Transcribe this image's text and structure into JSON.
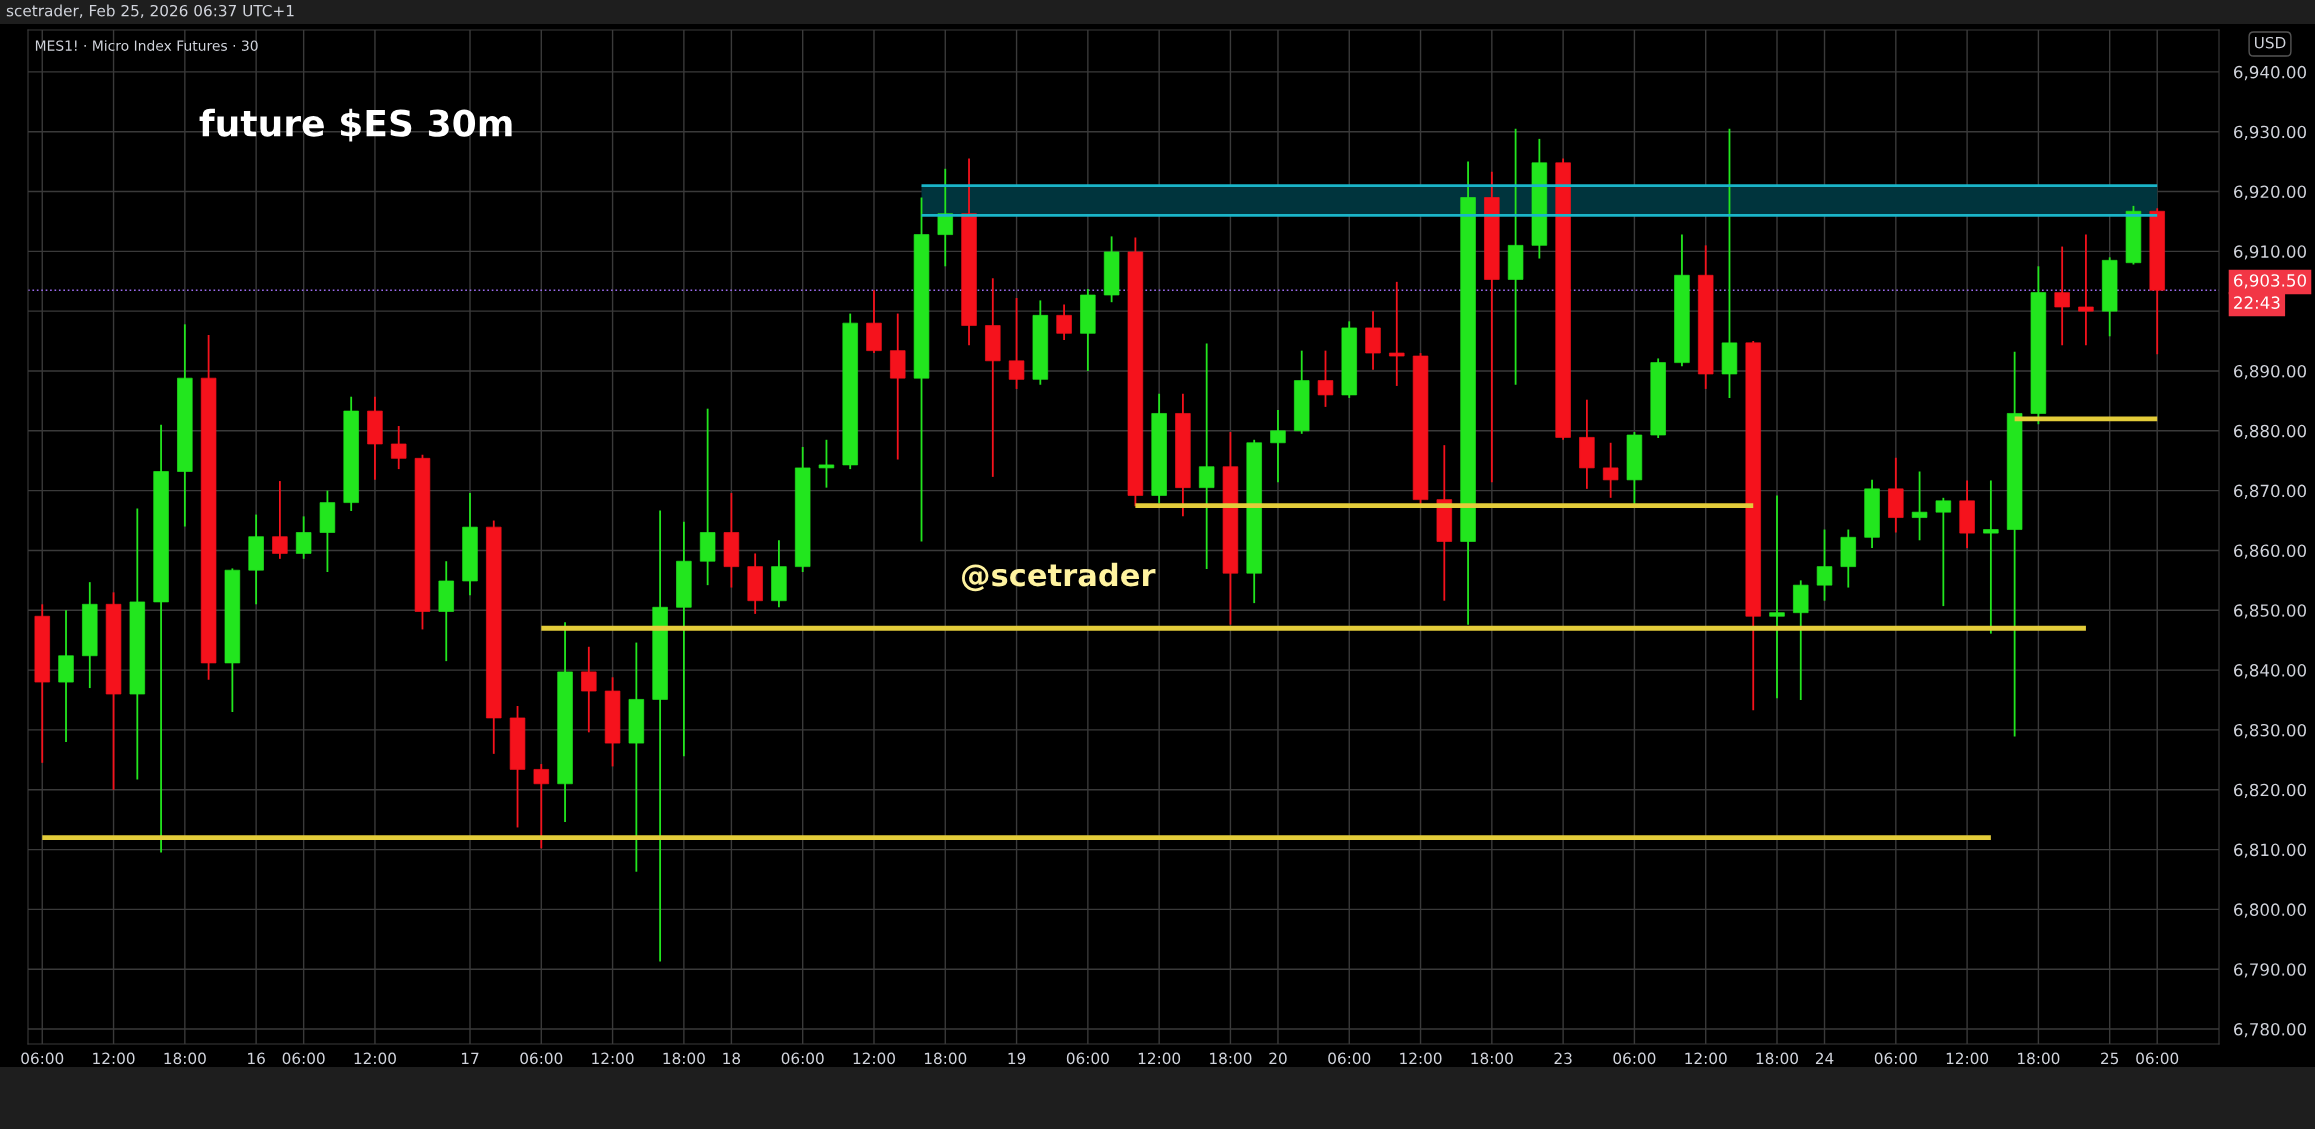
{
  "chart_data": {
    "type": "candlestick",
    "title": "future $ES 30m",
    "subtitle": "MES1! · Micro Index Futures · 30",
    "annotations": [
      "scetrader, Feb 25, 2026 06:37 UTC+1",
      "@scetrader",
      "USD",
      "22:43"
    ],
    "categories": [
      "06:00",
      null,
      null,
      "12:00",
      null,
      null,
      "18:00",
      null,
      null,
      "16",
      null,
      "06:00",
      null,
      null,
      "12:00",
      null,
      null,
      null,
      "17",
      null,
      null,
      "06:00",
      null,
      null,
      "12:00",
      null,
      null,
      "18:00",
      null,
      "18",
      null,
      null,
      "06:00",
      null,
      null,
      "12:00",
      null,
      null,
      "18:00",
      null,
      null,
      "19",
      null,
      null,
      "06:00",
      null,
      null,
      "12:00",
      null,
      null,
      "18:00",
      null,
      "20",
      null,
      null,
      "06:00",
      null,
      null,
      "12:00",
      null,
      null,
      "18:00",
      null,
      null,
      "23",
      null,
      null,
      "06:00",
      null,
      null,
      "12:00",
      null,
      null,
      "18:00",
      null,
      "24",
      null,
      null,
      "06:00",
      null,
      null,
      "12:00",
      null,
      null,
      "18:00",
      null,
      null,
      "25",
      null,
      "06:00"
    ],
    "ohlc": [
      [
        6849,
        6851,
        6824.5,
        6838
      ],
      [
        6838,
        6850,
        6828,
        6842.4
      ],
      [
        6842.4,
        6854.7,
        6837,
        6851
      ],
      [
        6851,
        6853,
        6820,
        6836
      ],
      [
        6836,
        6867,
        6821.7,
        6851.4
      ],
      [
        6851.4,
        6881,
        6809.5,
        6873.2
      ],
      [
        6873.2,
        6897.8,
        6864,
        6888.8
      ],
      [
        6888.8,
        6896,
        6838.4,
        6841.2
      ],
      [
        6841.2,
        6857,
        6833,
        6856.7
      ],
      [
        6856.7,
        6866,
        6851,
        6862.3
      ],
      [
        6862.3,
        6871.6,
        6858.6,
        6859.5
      ],
      [
        6859.5,
        6865.7,
        6858.6,
        6863
      ],
      [
        6863,
        6870,
        6856.4,
        6868
      ],
      [
        6868,
        6885.7,
        6866.6,
        6883.3
      ],
      [
        6883.3,
        6885.7,
        6871.8,
        6877.8
      ],
      [
        6877.8,
        6880.8,
        6873.6,
        6875.4
      ],
      [
        6875.4,
        6876,
        6846.8,
        6849.8
      ],
      [
        6849.8,
        6858.2,
        6841.5,
        6854.9
      ],
      [
        6854.9,
        6869.6,
        6852.5,
        6863.9
      ],
      [
        6863.9,
        6865,
        6826,
        6832
      ],
      [
        6832,
        6834,
        6813.7,
        6823.4
      ],
      [
        6823.4,
        6824.3,
        6810.2,
        6821
      ],
      [
        6821,
        6848,
        6814.6,
        6839.7
      ],
      [
        6839.7,
        6843.9,
        6829.6,
        6836.5
      ],
      [
        6836.5,
        6838.8,
        6823.9,
        6827.8
      ],
      [
        6827.8,
        6844.6,
        6806.3,
        6835.1
      ],
      [
        6835.1,
        6866.7,
        6791.3,
        6850.5
      ],
      [
        6850.5,
        6864.8,
        6825.6,
        6858.2
      ],
      [
        6858.2,
        6883.7,
        6854.2,
        6863
      ],
      [
        6863,
        6869.6,
        6853.8,
        6857.3
      ],
      [
        6857.3,
        6859.5,
        6849.4,
        6851.6
      ],
      [
        6851.6,
        6861.7,
        6850.5,
        6857.3
      ],
      [
        6857.3,
        6877.3,
        6856.4,
        6873.8
      ],
      [
        6873.8,
        6878.5,
        6870.5,
        6874.3
      ],
      [
        6874.3,
        6899.6,
        6873.6,
        6898
      ],
      [
        6898,
        6903.5,
        6893,
        6893.4
      ],
      [
        6893.4,
        6899.6,
        6875.2,
        6888.8
      ],
      [
        6888.8,
        6919,
        6861.5,
        6912.8
      ],
      [
        6912.8,
        6923.8,
        6907.5,
        6916.3
      ],
      [
        6916.3,
        6925.5,
        6894.3,
        6897.6
      ],
      [
        6897.6,
        6905.5,
        6872.3,
        6891.7
      ],
      [
        6891.7,
        6902.2,
        6887,
        6888.6
      ],
      [
        6888.6,
        6901.8,
        6887.7,
        6899.3
      ],
      [
        6899.3,
        6901.1,
        6895.2,
        6896.3
      ],
      [
        6896.3,
        6903.7,
        6890,
        6902.7
      ],
      [
        6902.7,
        6912.5,
        6901.5,
        6909.9
      ],
      [
        6909.9,
        6912.3,
        6867.4,
        6869.2
      ],
      [
        6869.2,
        6886.2,
        6867.9,
        6882.9
      ],
      [
        6882.9,
        6886.2,
        6865.7,
        6870.5
      ],
      [
        6870.5,
        6894.6,
        6856.9,
        6874
      ],
      [
        6874,
        6879.8,
        6847.6,
        6856.2
      ],
      [
        6856.2,
        6878.5,
        6851.2,
        6878
      ],
      [
        6878,
        6883.5,
        6871.4,
        6880
      ],
      [
        6880,
        6893.4,
        6879.5,
        6888.4
      ],
      [
        6888.4,
        6893.4,
        6884,
        6886
      ],
      [
        6886,
        6898.3,
        6885.5,
        6897.2
      ],
      [
        6897.2,
        6900,
        6890.2,
        6893
      ],
      [
        6893,
        6904.9,
        6887.5,
        6892.5
      ],
      [
        6892.5,
        6893,
        6867.4,
        6868.5
      ],
      [
        6868.5,
        6877.6,
        6851.6,
        6861.5
      ],
      [
        6861.5,
        6925,
        6847.6,
        6919
      ],
      [
        6919,
        6923.3,
        6871.4,
        6905.3
      ],
      [
        6905.3,
        6930.5,
        6887.7,
        6911
      ],
      [
        6911,
        6928.8,
        6908.8,
        6924.8
      ],
      [
        6924.8,
        6925.5,
        6878.5,
        6878.9
      ],
      [
        6878.9,
        6885.2,
        6870.3,
        6873.8
      ],
      [
        6873.8,
        6878,
        6868.8,
        6871.8
      ],
      [
        6871.8,
        6879.8,
        6867.6,
        6879.3
      ],
      [
        6879.3,
        6892.1,
        6878.8,
        6891.4
      ],
      [
        6891.4,
        6912.8,
        6890.8,
        6906
      ],
      [
        6906,
        6911,
        6887,
        6889.5
      ],
      [
        6889.5,
        6930.5,
        6885.5,
        6894.7
      ],
      [
        6894.7,
        6895,
        6833.3,
        6849
      ],
      [
        6849,
        6869.2,
        6835.3,
        6849.6
      ],
      [
        6849.6,
        6855,
        6835,
        6854.2
      ],
      [
        6854.2,
        6863.5,
        6851.6,
        6857.3
      ],
      [
        6857.3,
        6863.5,
        6853.8,
        6862.2
      ],
      [
        6862.2,
        6871.8,
        6860.4,
        6870.3
      ],
      [
        6870.3,
        6875.5,
        6863,
        6865.5
      ],
      [
        6865.5,
        6873.2,
        6861.7,
        6866.4
      ],
      [
        6866.4,
        6868.8,
        6850.7,
        6868.3
      ],
      [
        6868.3,
        6871.7,
        6860.4,
        6862.9
      ],
      [
        6862.9,
        6871.7,
        6846.1,
        6863.5
      ],
      [
        6863.5,
        6893.2,
        6828.9,
        6882.9
      ],
      [
        6882.9,
        6907.5,
        6881.1,
        6903.1
      ],
      [
        6903.1,
        6910.8,
        6894.3,
        6900.7
      ],
      [
        6900.7,
        6912.8,
        6894.3,
        6900
      ],
      [
        6900,
        6909,
        6895.8,
        6908.5
      ],
      [
        6908.1,
        6917.6,
        6907.8,
        6916.7
      ],
      [
        6916.7,
        6917.2,
        6892.8,
        6903.5
      ]
    ],
    "colors": [
      "#f5121c",
      "#22e61e",
      "#22e61e",
      "#f5121c",
      "#22e61e",
      "#22e61e",
      "#22e61e",
      "#f5121c",
      "#22e61e",
      "#22e61e",
      "#f5121c",
      "#22e61e",
      "#22e61e",
      "#22e61e",
      "#f5121c",
      "#f5121c",
      "#f5121c",
      "#22e61e",
      "#22e61e",
      "#f5121c",
      "#f5121c",
      "#f5121c",
      "#22e61e",
      "#f5121c",
      "#f5121c",
      "#22e61e",
      "#22e61e",
      "#22e61e",
      "#22e61e",
      "#f5121c",
      "#f5121c",
      "#22e61e",
      "#22e61e",
      "#22e61e",
      "#22e61e",
      "#f5121c",
      "#f5121c",
      "#22e61e",
      "#22e61e",
      "#f5121c",
      "#f5121c",
      "#f5121c",
      "#22e61e",
      "#f5121c",
      "#22e61e",
      "#22e61e",
      "#f5121c",
      "#22e61e",
      "#f5121c",
      "#22e61e",
      "#f5121c",
      "#22e61e",
      "#22e61e",
      "#22e61e",
      "#f5121c",
      "#22e61e",
      "#f5121c",
      "#f5121c",
      "#f5121c",
      "#f5121c",
      "#22e61e",
      "#f5121c",
      "#22e61e",
      "#22e61e",
      "#f5121c",
      "#f5121c",
      "#f5121c",
      "#22e61e",
      "#22e61e",
      "#22e61e",
      "#f5121c",
      "#22e61e",
      "#f5121c",
      "#22e61e",
      "#22e61e",
      "#22e61e",
      "#22e61e",
      "#22e61e",
      "#f5121c",
      "#22e61e",
      "#22e61e",
      "#f5121c",
      "#22e61e",
      "#22e61e",
      "#22e61e",
      "#f5121c",
      "#f5121c",
      "#22e61e",
      "#22e61e",
      "#f5121c"
    ],
    "series": [
      {
        "type": "line",
        "color": "#e3cc3a",
        "values": [
          null,
          null,
          null,
          null,
          null,
          null,
          null,
          null,
          null,
          null,
          null,
          null,
          null,
          null,
          null,
          null,
          null,
          null,
          null,
          null,
          null,
          6847,
          6847,
          6847,
          6847,
          6847,
          6847,
          6847,
          6847,
          6847,
          6847,
          6847,
          6847,
          6847,
          6847,
          6847,
          6847,
          6847,
          6847,
          6847,
          6847,
          6847,
          6847,
          6847,
          6847,
          6847,
          6847,
          6847,
          6847,
          6847,
          6847,
          6847,
          6847,
          6847,
          6847,
          6847,
          6847,
          6847,
          6847,
          6847,
          6847,
          6847,
          6847,
          6847,
          6847,
          6847,
          6847,
          6847,
          6847,
          6847,
          6847,
          6847,
          6847,
          6847,
          6847,
          6847,
          6847,
          6847,
          6847,
          6847,
          6847,
          6847,
          6847,
          6847,
          6847,
          6847,
          6847,
          null,
          null,
          null
        ]
      },
      {
        "type": "line",
        "color": "#e3cc3a",
        "values": [
          6812,
          6812,
          6812,
          6812,
          6812,
          6812,
          6812,
          6812,
          6812,
          6812,
          6812,
          6812,
          6812,
          6812,
          6812,
          6812,
          6812,
          6812,
          6812,
          6812,
          6812,
          6812,
          6812,
          6812,
          6812,
          6812,
          6812,
          6812,
          6812,
          6812,
          6812,
          6812,
          6812,
          6812,
          6812,
          6812,
          6812,
          6812,
          6812,
          6812,
          6812,
          6812,
          6812,
          6812,
          6812,
          6812,
          6812,
          6812,
          6812,
          6812,
          6812,
          6812,
          6812,
          6812,
          6812,
          6812,
          6812,
          6812,
          6812,
          6812,
          6812,
          6812,
          6812,
          6812,
          6812,
          6812,
          6812,
          6812,
          6812,
          6812,
          6812,
          6812,
          6812,
          6812,
          6812,
          6812,
          6812,
          6812,
          6812,
          6812,
          6812,
          6812,
          6812,
          null,
          null,
          null,
          null,
          null,
          null,
          null
        ]
      },
      {
        "type": "line",
        "color": "#e3cc3a",
        "values": [
          null,
          null,
          null,
          null,
          null,
          null,
          null,
          null,
          null,
          null,
          null,
          null,
          null,
          null,
          null,
          null,
          null,
          null,
          null,
          null,
          null,
          null,
          null,
          null,
          null,
          null,
          null,
          null,
          null,
          null,
          null,
          null,
          null,
          null,
          null,
          null,
          null,
          null,
          null,
          null,
          null,
          null,
          null,
          null,
          null,
          null,
          6867.5,
          6867.5,
          6867.5,
          6867.5,
          6867.5,
          6867.5,
          6867.5,
          6867.5,
          6867.5,
          6867.5,
          6867.5,
          6867.5,
          6867.5,
          6867.5,
          6867.5,
          6867.5,
          6867.5,
          6867.5,
          6867.5,
          6867.5,
          6867.5,
          6867.5,
          6867.5,
          6867.5,
          6867.5,
          6867.5,
          6867.5,
          null,
          null,
          null,
          null,
          null,
          null,
          null,
          null,
          null,
          null,
          null,
          null,
          null,
          null,
          null,
          null,
          null
        ]
      },
      {
        "type": "line",
        "color": "#e3cc3a",
        "values": [
          null,
          null,
          null,
          null,
          null,
          null,
          null,
          null,
          null,
          null,
          null,
          null,
          null,
          null,
          null,
          null,
          null,
          null,
          null,
          null,
          null,
          null,
          null,
          null,
          null,
          null,
          null,
          null,
          null,
          null,
          null,
          null,
          null,
          null,
          null,
          null,
          null,
          null,
          null,
          null,
          null,
          null,
          null,
          null,
          null,
          null,
          null,
          null,
          null,
          null,
          null,
          null,
          null,
          null,
          null,
          null,
          null,
          null,
          null,
          null,
          null,
          null,
          null,
          null,
          null,
          null,
          null,
          null,
          null,
          null,
          null,
          null,
          null,
          null,
          null,
          null,
          null,
          null,
          null,
          null,
          null,
          null,
          null,
          6882,
          6882,
          6882,
          6882,
          6882,
          6882,
          6882
        ]
      },
      {
        "type": "line",
        "color": "#1ab5c9",
        "values": [
          null,
          null,
          null,
          null,
          null,
          null,
          null,
          null,
          null,
          null,
          null,
          null,
          null,
          null,
          null,
          null,
          null,
          null,
          null,
          null,
          null,
          null,
          null,
          null,
          null,
          null,
          null,
          null,
          null,
          null,
          null,
          null,
          null,
          null,
          null,
          null,
          null,
          6916,
          6916,
          6916,
          6916,
          6916,
          6916,
          6916,
          6916,
          6916,
          6916,
          6916,
          6916,
          6916,
          6916,
          6916,
          6916,
          6916,
          6916,
          6916,
          6916,
          6916,
          6916,
          6916,
          6916,
          6916,
          6916,
          6916,
          6916,
          6916,
          6916,
          6916,
          6916,
          6916,
          6916,
          6916,
          6916,
          6916,
          6916,
          6916,
          6916,
          6916,
          6916,
          6916,
          6916,
          6916,
          6916,
          6916,
          6916,
          6916,
          6916,
          6916,
          6916,
          6916
        ]
      },
      {
        "type": "line",
        "color": "#1ab5c9",
        "values": [
          null,
          null,
          null,
          null,
          null,
          null,
          null,
          null,
          null,
          null,
          null,
          null,
          null,
          null,
          null,
          null,
          null,
          null,
          null,
          null,
          null,
          null,
          null,
          null,
          null,
          null,
          null,
          null,
          null,
          null,
          null,
          null,
          null,
          null,
          null,
          null,
          null,
          6921,
          6921,
          6921,
          6921,
          6921,
          6921,
          6921,
          6921,
          6921,
          6921,
          6921,
          6921,
          6921,
          6921,
          6921,
          6921,
          6921,
          6921,
          6921,
          6921,
          6921,
          6921,
          6921,
          6921,
          6921,
          6921,
          6921,
          6921,
          6921,
          6921,
          6921,
          6921,
          6921,
          6921,
          6921,
          6921,
          6921,
          6921,
          6921,
          6921,
          6921,
          6921,
          6921,
          6921,
          6921,
          6921,
          6921,
          6921,
          6921,
          6921,
          6921,
          6921,
          6921
        ]
      }
    ],
    "ref_lines": [
      {
        "axis": "y",
        "value": 6903.5,
        "label": "6,903.50",
        "color": "#9c6cf0",
        "line_style": "dotted"
      }
    ],
    "ylim": [
      6777.5,
      6947
    ],
    "yticks": [
      {
        "value": 6780,
        "label": "6,780.00"
      },
      {
        "value": 6790,
        "label": "6,790.00"
      },
      {
        "value": 6800,
        "label": "6,800.00"
      },
      {
        "value": 6810,
        "label": "6,810.00"
      },
      {
        "value": 6820,
        "label": "6,820.00"
      },
      {
        "value": 6830,
        "label": "6,830.00"
      },
      {
        "value": 6840,
        "label": "6,840.00"
      },
      {
        "value": 6850,
        "label": "6,850.00"
      },
      {
        "value": 6860,
        "label": "6,860.00"
      },
      {
        "value": 6870,
        "label": "6,870.00"
      },
      {
        "value": 6880,
        "label": "6,880.00"
      },
      {
        "value": 6890,
        "label": "6,890.00"
      },
      {
        "value": 6900,
        "label": null
      },
      {
        "value": 6910,
        "label": "6,910.00"
      },
      {
        "value": 6920,
        "label": "6,920.00"
      },
      {
        "value": 6930,
        "label": "6,930.00"
      },
      {
        "value": 6940,
        "label": "6,940.00"
      }
    ],
    "grid": true
  }
}
